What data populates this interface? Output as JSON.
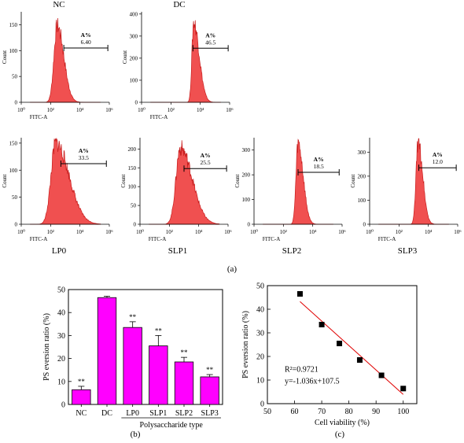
{
  "figure": {
    "label_a": "(a)",
    "label_b": "(b)",
    "label_c": "(c)"
  },
  "colors": {
    "histogram_fill": "#f05050",
    "histogram_edge": "#c81e1e",
    "bar_fill": "#ff00ff",
    "fit_line": "#e00000",
    "point": "#000000"
  },
  "chart_data": [
    {
      "type": "histogram",
      "name": "NC",
      "title": "NC",
      "xlabel": "FITC-A",
      "ylabel": "Count",
      "x_scale": "log",
      "x_ticks": [
        "10⁰",
        "10²",
        "10⁴",
        "10⁶"
      ],
      "x_tick_values": [
        0,
        2,
        4,
        6
      ],
      "y_ticks": [
        "0",
        "50",
        "100",
        "150"
      ],
      "ylim": [
        0,
        175
      ],
      "peak": {
        "center_log": 2.45,
        "height": 150,
        "width_left": 0.22,
        "width_right": 0.45
      },
      "gate": {
        "label": "A%",
        "value": "6.40",
        "from_log": 2.9,
        "to_log": 5.9,
        "y": 105
      }
    },
    {
      "type": "histogram",
      "name": "DC",
      "title": "DC",
      "xlabel": "FITC-A",
      "ylabel": "Count",
      "x_scale": "log",
      "x_ticks": [
        "10⁰",
        "10²",
        "10⁴",
        "10⁶"
      ],
      "x_tick_values": [
        0,
        2,
        4,
        6
      ],
      "y_ticks": [
        "0",
        "100",
        "200",
        "300",
        "400"
      ],
      "ylim": [
        0,
        410
      ],
      "peak": {
        "center_log": 3.55,
        "height": 365,
        "width_left": 0.12,
        "width_right": 0.38
      },
      "gate": {
        "label": "A%",
        "value": "46.5",
        "from_log": 3.5,
        "to_log": 5.9,
        "y": 245
      }
    },
    {
      "type": "histogram",
      "name": "LP0",
      "title": "LP0",
      "xlabel": "FITC-A",
      "ylabel": "Count",
      "x_scale": "log",
      "x_ticks": [
        "10⁰",
        "10²",
        "10⁴",
        "10⁶"
      ],
      "x_tick_values": [
        0,
        2,
        4,
        6
      ],
      "y_ticks": [
        "0",
        "50",
        "100",
        "150"
      ],
      "ylim": [
        0,
        160
      ],
      "peak": {
        "center_log": 2.35,
        "height": 152,
        "width_left": 0.32,
        "width_right": 0.9
      },
      "gate": {
        "label": "A%",
        "value": "33.5",
        "from_log": 2.7,
        "to_log": 5.8,
        "y": 112
      }
    },
    {
      "type": "histogram",
      "name": "SLP1",
      "title": "SLP1",
      "xlabel": "FITC-A",
      "ylabel": "Count",
      "x_scale": "log",
      "x_ticks": [
        "10⁰",
        "10²",
        "10⁴",
        "10⁶"
      ],
      "x_tick_values": [
        0,
        2,
        4,
        6
      ],
      "y_ticks": [
        "0",
        "50",
        "100",
        "150",
        "200"
      ],
      "ylim": [
        0,
        230
      ],
      "peak": {
        "center_log": 2.75,
        "height": 205,
        "width_left": 0.3,
        "width_right": 0.8
      },
      "gate": {
        "label": "A%",
        "value": "25.5",
        "from_log": 3.0,
        "to_log": 5.9,
        "y": 148
      }
    },
    {
      "type": "histogram",
      "name": "SLP2",
      "title": "SLP2",
      "xlabel": "FITC-A",
      "ylabel": "Count",
      "x_scale": "log",
      "x_ticks": [
        "10⁰",
        "10²",
        "10⁴",
        "10⁶"
      ],
      "x_tick_values": [
        0,
        2,
        4,
        6
      ],
      "y_ticks": [
        "0",
        "100",
        "200",
        "300"
      ],
      "ylim": [
        0,
        350
      ],
      "peak": {
        "center_log": 3.0,
        "height": 330,
        "width_left": 0.14,
        "width_right": 0.35
      },
      "gate": {
        "label": "A%",
        "value": "18.5",
        "from_log": 3.0,
        "to_log": 5.8,
        "y": 210
      }
    },
    {
      "type": "histogram",
      "name": "SLP3",
      "title": "SLP3",
      "xlabel": "FITC-A",
      "ylabel": "Count",
      "x_scale": "log",
      "x_ticks": [
        "10⁰",
        "10²",
        "10⁴",
        "10⁶"
      ],
      "x_tick_values": [
        0,
        2,
        4,
        6
      ],
      "y_ticks": [
        "0",
        "100",
        "200",
        "300"
      ],
      "ylim": [
        0,
        360
      ],
      "peak": {
        "center_log": 3.3,
        "height": 345,
        "width_left": 0.14,
        "width_right": 0.32
      },
      "gate": {
        "label": "A%",
        "value": "12.0",
        "from_log": 3.35,
        "to_log": 5.9,
        "y": 235
      }
    },
    {
      "type": "bar",
      "xlabel": "Polysaccharide type",
      "ylabel": "PS eversion ratio (%)",
      "categories": [
        "NC",
        "DC",
        "LP0",
        "SLP1",
        "SLP2",
        "SLP3"
      ],
      "values": [
        6.4,
        46.5,
        33.5,
        25.5,
        18.5,
        12.0
      ],
      "errors": [
        1.5,
        0.6,
        2.5,
        4.5,
        2.0,
        1.0
      ],
      "annotations": [
        "**",
        "",
        "**",
        "**",
        "**",
        "**"
      ],
      "y_ticks": [
        0,
        10,
        20,
        30,
        40,
        50
      ],
      "ylim": [
        0,
        50
      ]
    },
    {
      "type": "scatter",
      "xlabel": "Cell viability (%)",
      "ylabel": "PS eversion ratio (%)",
      "x": [
        62,
        70,
        76.5,
        84,
        92,
        100
      ],
      "y": [
        46.5,
        33.5,
        25.5,
        18.5,
        12.0,
        6.4
      ],
      "fit": {
        "slope": -1.036,
        "intercept": 107.5,
        "x_range": [
          62,
          100
        ]
      },
      "annotations": [
        "R²=0.9721",
        "y=-1.036x+107.5"
      ],
      "x_ticks": [
        50,
        60,
        70,
        80,
        90,
        100
      ],
      "y_ticks": [
        0,
        10,
        20,
        30,
        40,
        50
      ],
      "xlim": [
        50,
        105
      ],
      "ylim": [
        0,
        50
      ]
    }
  ]
}
